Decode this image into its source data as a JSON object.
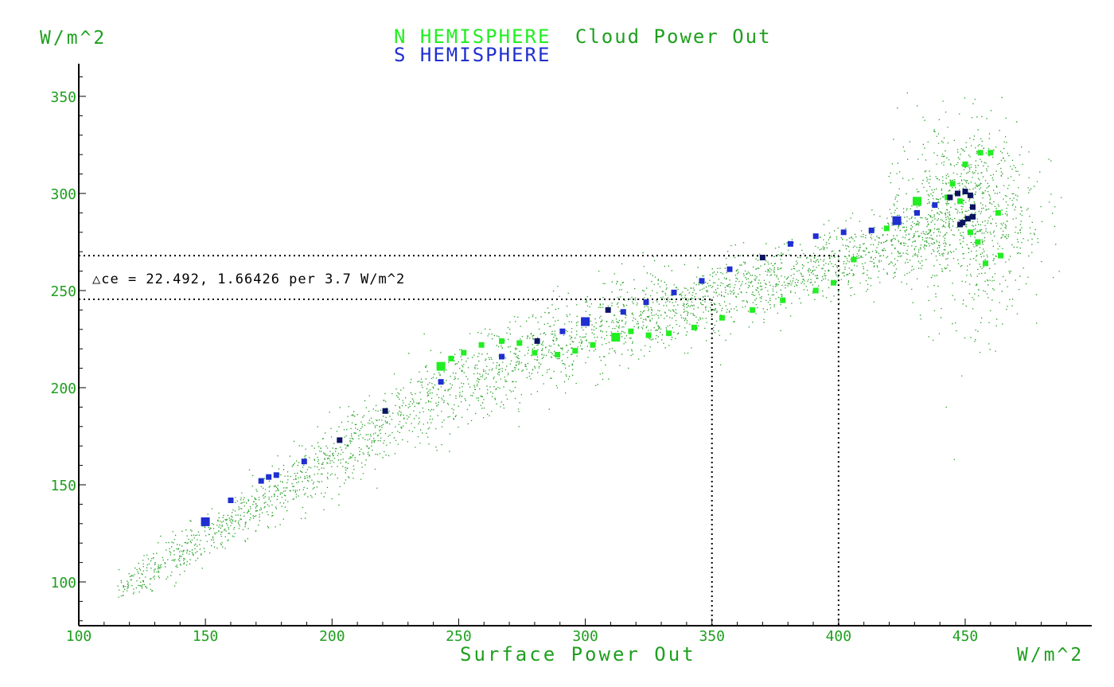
{
  "chart_data": {
    "type": "scatter",
    "title_n": "N HEMISPHERE",
    "title_rest": "Cloud Power Out",
    "title_s": "S HEMISPHERE",
    "xlabel": "Surface Power Out",
    "x_unit": "W/m^2",
    "y_unit": "W/m^2",
    "xlim": [
      100,
      495
    ],
    "ylim": [
      78,
      367
    ],
    "x_ticks": [
      100,
      150,
      200,
      250,
      300,
      350,
      400,
      450
    ],
    "y_ticks": [
      100,
      150,
      200,
      250,
      300,
      350
    ],
    "annotation": "△ce = 22.492, 1.66426 per 3.7 W/m^2",
    "reference_lines": {
      "horizontal_y": [
        268,
        245.5
      ],
      "vertical_x": [
        350,
        400
      ]
    },
    "colors": {
      "scatter": "#1f9f1f",
      "n_hemisphere": "#22ee22",
      "s_hemisphere": "#1f2fd0",
      "s_dark": "#0a1460"
    },
    "series": [
      {
        "name": "N HEMISPHERE",
        "points": [
          [
            243,
            211
          ],
          [
            247,
            215
          ],
          [
            252,
            218
          ],
          [
            259,
            222
          ],
          [
            267,
            224
          ],
          [
            274,
            223
          ],
          [
            280,
            218
          ],
          [
            289,
            217
          ],
          [
            296,
            219
          ],
          [
            303,
            222
          ],
          [
            312,
            226
          ],
          [
            318,
            229
          ],
          [
            325,
            227
          ],
          [
            333,
            228
          ],
          [
            343,
            231
          ],
          [
            354,
            236
          ],
          [
            366,
            240
          ],
          [
            378,
            245
          ],
          [
            391,
            250
          ],
          [
            398,
            254
          ],
          [
            406,
            266
          ],
          [
            419,
            282
          ],
          [
            431,
            296
          ],
          [
            445,
            305
          ],
          [
            450,
            315
          ],
          [
            456,
            321
          ],
          [
            460,
            321
          ],
          [
            463,
            290
          ],
          [
            452,
            280
          ],
          [
            455,
            275
          ],
          [
            464,
            268
          ],
          [
            458,
            264
          ],
          [
            448,
            296
          ],
          [
            443,
            298
          ]
        ]
      },
      {
        "name": "S HEMISPHERE",
        "points": [
          [
            150,
            131
          ],
          [
            160,
            142
          ],
          [
            172,
            152
          ],
          [
            175,
            154
          ],
          [
            178,
            155
          ],
          [
            189,
            162
          ],
          [
            203,
            173
          ],
          [
            221,
            188
          ],
          [
            243,
            203
          ],
          [
            267,
            216
          ],
          [
            281,
            224
          ],
          [
            291,
            229
          ],
          [
            300,
            234
          ],
          [
            309,
            240
          ],
          [
            315,
            239
          ],
          [
            324,
            244
          ],
          [
            335,
            249
          ],
          [
            346,
            255
          ],
          [
            357,
            261
          ],
          [
            370,
            267
          ],
          [
            381,
            274
          ],
          [
            391,
            278
          ],
          [
            402,
            280
          ],
          [
            413,
            281
          ],
          [
            423,
            286
          ],
          [
            431,
            290
          ],
          [
            438,
            294
          ],
          [
            444,
            298
          ],
          [
            447,
            300
          ],
          [
            450,
            301
          ],
          [
            452,
            299
          ],
          [
            449,
            285
          ],
          [
            451,
            287
          ],
          [
            453,
            293
          ],
          [
            453,
            288
          ],
          [
            448,
            284
          ]
        ]
      }
    ]
  }
}
